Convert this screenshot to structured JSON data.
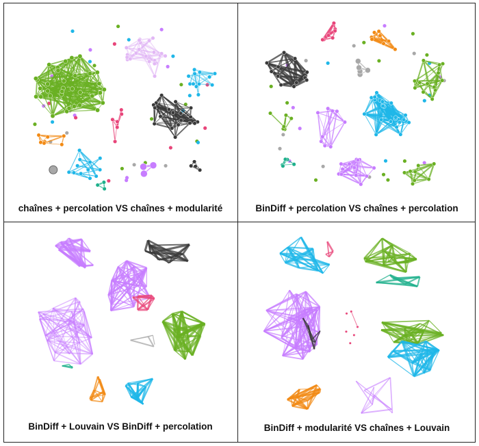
{
  "panels": [
    {
      "caption": "chaînes + percolation VS chaînes + modularité"
    },
    {
      "caption": "BinDiff + percolation VS chaînes + percolation"
    },
    {
      "caption": "BinDiff + Louvain VS BinDiff + percolation"
    },
    {
      "caption": "BinDiff + modularité VS chaînes + Louvain"
    }
  ],
  "palette": {
    "green": "#6ab023",
    "violet": "#c77dff",
    "lightviolet": "#e2b8f5",
    "darkgray": "#3a3a3a",
    "gray": "#a8a8a8",
    "cyan": "#1fb7e8",
    "orange": "#f28a14",
    "pink": "#e8457a",
    "teal": "#1fb08c",
    "olive": "#b8a020"
  }
}
